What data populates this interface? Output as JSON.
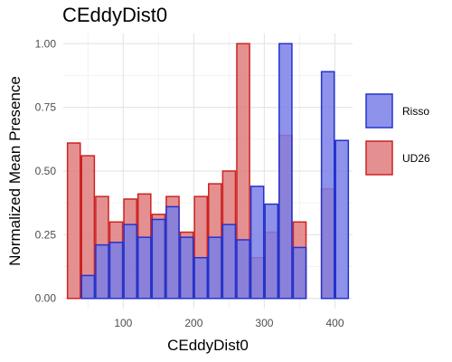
{
  "chart_data": {
    "type": "bar",
    "title": "CEddyDist0",
    "xlabel": "CEddyDist0",
    "ylabel": "Normalized Mean Presence",
    "xlim": [
      15,
      425
    ],
    "ylim": [
      -0.04,
      1.04
    ],
    "xticks": [
      100,
      200,
      300,
      400
    ],
    "yticks": [
      0.0,
      0.25,
      0.5,
      0.75,
      1.0
    ],
    "ytick_labels": [
      "0.00",
      "0.25",
      "0.50",
      "0.75",
      "1.00"
    ],
    "bin_width": 20,
    "grid": true,
    "legend_position": "right",
    "series": [
      {
        "name": "UD26",
        "fill": "#e07c7c",
        "stroke": "#cc2222",
        "x": [
          30,
          50,
          70,
          90,
          110,
          130,
          150,
          170,
          190,
          210,
          230,
          250,
          270,
          290,
          310,
          330,
          350,
          390
        ],
        "values": [
          0.61,
          0.56,
          0.4,
          0.3,
          0.39,
          0.41,
          0.33,
          0.4,
          0.26,
          0.4,
          0.45,
          0.5,
          1.0,
          0.16,
          0.26,
          0.64,
          0.3,
          0.43
        ]
      },
      {
        "name": "Risso",
        "fill": "#7b7fe6",
        "stroke": "#2233cc",
        "x": [
          50,
          70,
          90,
          110,
          130,
          150,
          170,
          190,
          210,
          230,
          250,
          270,
          290,
          310,
          330,
          350,
          390,
          410
        ],
        "values": [
          0.09,
          0.21,
          0.22,
          0.29,
          0.24,
          0.31,
          0.36,
          0.24,
          0.16,
          0.24,
          0.29,
          0.23,
          0.44,
          0.37,
          1.0,
          0.2,
          0.89,
          0.62
        ]
      }
    ]
  }
}
